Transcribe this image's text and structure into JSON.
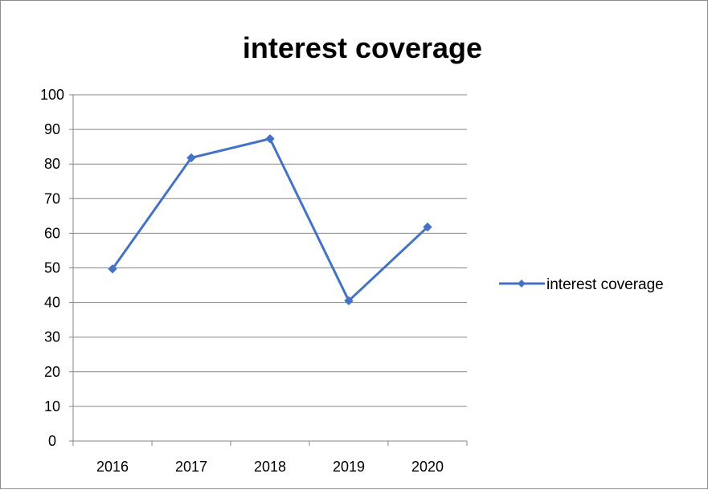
{
  "chart_data": {
    "type": "line",
    "title": "interest coverage",
    "categories": [
      "2016",
      "2017",
      "2018",
      "2019",
      "2020"
    ],
    "series": [
      {
        "name": "interest coverage",
        "values": [
          49.7,
          81.8,
          87.3,
          40.5,
          61.8
        ],
        "color": "#4472C4",
        "marker": "diamond"
      }
    ],
    "ylim": [
      0,
      100
    ],
    "yticks": [
      "0",
      "10",
      "20",
      "30",
      "40",
      "50",
      "60",
      "70",
      "80",
      "90",
      "100"
    ],
    "grid": true,
    "legend_position": "right"
  }
}
